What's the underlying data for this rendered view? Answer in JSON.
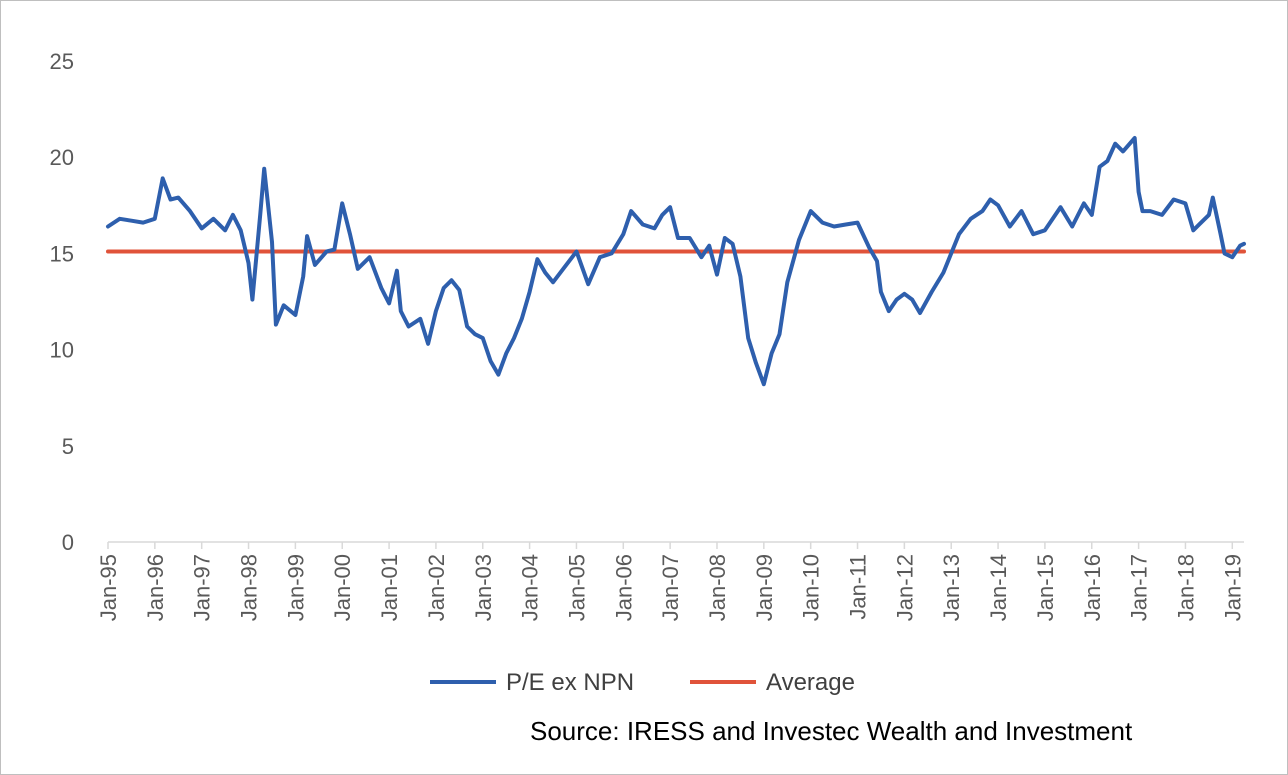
{
  "source_text": "Source: IRESS and Investec Wealth and Investment",
  "chart_data": {
    "type": "line",
    "title": "",
    "xlabel": "",
    "ylabel": "",
    "ylim": [
      0,
      25
    ],
    "yticks": [
      "0",
      "5",
      "10",
      "15",
      "20",
      "25"
    ],
    "xticks": [
      "Jan-95",
      "Jan-96",
      "Jan-97",
      "Jan-98",
      "Jan-99",
      "Jan-00",
      "Jan-01",
      "Jan-02",
      "Jan-03",
      "Jan-04",
      "Jan-05",
      "Jan-06",
      "Jan-07",
      "Jan-08",
      "Jan-09",
      "Jan-10",
      "Jan-11",
      "Jan-12",
      "Jan-13",
      "Jan-14",
      "Jan-15",
      "Jan-16",
      "Jan-17",
      "Jan-18",
      "Jan-19"
    ],
    "grid": false,
    "legend_position": "bottom",
    "series": [
      {
        "name": "P/E ex NPN",
        "color": "#2e5fad",
        "points": [
          [
            "Jan-95",
            16.4
          ],
          [
            "Apr-95",
            16.8
          ],
          [
            "Jul-95",
            16.7
          ],
          [
            "Oct-95",
            16.6
          ],
          [
            "Jan-96",
            16.8
          ],
          [
            "Mar-96",
            18.9
          ],
          [
            "May-96",
            17.8
          ],
          [
            "Jul-96",
            17.9
          ],
          [
            "Oct-96",
            17.2
          ],
          [
            "Jan-97",
            16.3
          ],
          [
            "Apr-97",
            16.8
          ],
          [
            "Jul-97",
            16.2
          ],
          [
            "Sep-97",
            17.0
          ],
          [
            "Nov-97",
            16.2
          ],
          [
            "Jan-98",
            14.5
          ],
          [
            "Feb-98",
            12.6
          ],
          [
            "Apr-98",
            17.0
          ],
          [
            "May-98",
            19.4
          ],
          [
            "Jul-98",
            15.6
          ],
          [
            "Aug-98",
            11.3
          ],
          [
            "Oct-98",
            12.3
          ],
          [
            "Jan-99",
            11.8
          ],
          [
            "Mar-99",
            13.8
          ],
          [
            "Apr-99",
            15.9
          ],
          [
            "Jun-99",
            14.4
          ],
          [
            "Sep-99",
            15.1
          ],
          [
            "Nov-99",
            15.2
          ],
          [
            "Jan-00",
            17.6
          ],
          [
            "Mar-00",
            16.0
          ],
          [
            "May-00",
            14.2
          ],
          [
            "Aug-00",
            14.8
          ],
          [
            "Nov-00",
            13.2
          ],
          [
            "Jan-01",
            12.4
          ],
          [
            "Mar-01",
            14.1
          ],
          [
            "Apr-01",
            12.0
          ],
          [
            "Jun-01",
            11.2
          ],
          [
            "Sep-01",
            11.6
          ],
          [
            "Nov-01",
            10.3
          ],
          [
            "Jan-02",
            12.0
          ],
          [
            "Mar-02",
            13.2
          ],
          [
            "May-02",
            13.6
          ],
          [
            "Jul-02",
            13.1
          ],
          [
            "Sep-02",
            11.2
          ],
          [
            "Nov-02",
            10.8
          ],
          [
            "Jan-03",
            10.6
          ],
          [
            "Mar-03",
            9.4
          ],
          [
            "May-03",
            8.7
          ],
          [
            "Jul-03",
            9.8
          ],
          [
            "Sep-03",
            10.6
          ],
          [
            "Nov-03",
            11.6
          ],
          [
            "Jan-04",
            13.0
          ],
          [
            "Mar-04",
            14.7
          ],
          [
            "May-04",
            14.0
          ],
          [
            "Jul-04",
            13.5
          ],
          [
            "Oct-04",
            14.3
          ],
          [
            "Jan-05",
            15.1
          ],
          [
            "Apr-05",
            13.4
          ],
          [
            "Jul-05",
            14.8
          ],
          [
            "Oct-05",
            15.0
          ],
          [
            "Jan-06",
            16.0
          ],
          [
            "Mar-06",
            17.2
          ],
          [
            "Jun-06",
            16.5
          ],
          [
            "Sep-06",
            16.3
          ],
          [
            "Nov-06",
            17.0
          ],
          [
            "Jan-07",
            17.4
          ],
          [
            "Mar-07",
            15.8
          ],
          [
            "Jun-07",
            15.8
          ],
          [
            "Sep-07",
            14.8
          ],
          [
            "Nov-07",
            15.4
          ],
          [
            "Jan-08",
            13.9
          ],
          [
            "Mar-08",
            15.8
          ],
          [
            "May-08",
            15.5
          ],
          [
            "Jul-08",
            13.8
          ],
          [
            "Sep-08",
            10.6
          ],
          [
            "Nov-08",
            9.3
          ],
          [
            "Jan-09",
            8.2
          ],
          [
            "Mar-09",
            9.8
          ],
          [
            "May-09",
            10.8
          ],
          [
            "Jul-09",
            13.5
          ],
          [
            "Oct-09",
            15.7
          ],
          [
            "Jan-10",
            17.2
          ],
          [
            "Apr-10",
            16.6
          ],
          [
            "Jul-10",
            16.4
          ],
          [
            "Oct-10",
            16.5
          ],
          [
            "Jan-11",
            16.6
          ],
          [
            "Apr-11",
            15.3
          ],
          [
            "Jun-11",
            14.6
          ],
          [
            "Jul-11",
            13.0
          ],
          [
            "Sep-11",
            12.0
          ],
          [
            "Nov-11",
            12.6
          ],
          [
            "Jan-12",
            12.9
          ],
          [
            "Mar-12",
            12.6
          ],
          [
            "May-12",
            11.9
          ],
          [
            "Aug-12",
            13.0
          ],
          [
            "Nov-12",
            14.0
          ],
          [
            "Jan-13",
            15.0
          ],
          [
            "Mar-13",
            16.0
          ],
          [
            "Jun-13",
            16.8
          ],
          [
            "Sep-13",
            17.2
          ],
          [
            "Nov-13",
            17.8
          ],
          [
            "Jan-14",
            17.5
          ],
          [
            "Apr-14",
            16.4
          ],
          [
            "Jul-14",
            17.2
          ],
          [
            "Oct-14",
            16.0
          ],
          [
            "Jan-15",
            16.2
          ],
          [
            "Mar-15",
            16.8
          ],
          [
            "May-15",
            17.4
          ],
          [
            "Aug-15",
            16.4
          ],
          [
            "Nov-15",
            17.6
          ],
          [
            "Jan-16",
            17.0
          ],
          [
            "Mar-16",
            19.5
          ],
          [
            "May-16",
            19.8
          ],
          [
            "Jul-16",
            20.7
          ],
          [
            "Sep-16",
            20.3
          ],
          [
            "Dec-16",
            21.0
          ],
          [
            "Jan-17",
            18.2
          ],
          [
            "Feb-17",
            17.2
          ],
          [
            "Apr-17",
            17.2
          ],
          [
            "Jul-17",
            17.0
          ],
          [
            "Oct-17",
            17.8
          ],
          [
            "Jan-18",
            17.6
          ],
          [
            "Mar-18",
            16.2
          ],
          [
            "May-18",
            16.6
          ],
          [
            "Jul-18",
            17.0
          ],
          [
            "Aug-18",
            17.9
          ],
          [
            "Oct-18",
            16.0
          ],
          [
            "Nov-18",
            15.0
          ],
          [
            "Jan-19",
            14.8
          ],
          [
            "Mar-19",
            15.4
          ],
          [
            "Apr-19",
            15.5
          ]
        ]
      },
      {
        "name": "Average",
        "color": "#e0533a",
        "points": [
          [
            "Jan-95",
            15.1
          ],
          [
            "Apr-19",
            15.1
          ]
        ]
      }
    ]
  }
}
